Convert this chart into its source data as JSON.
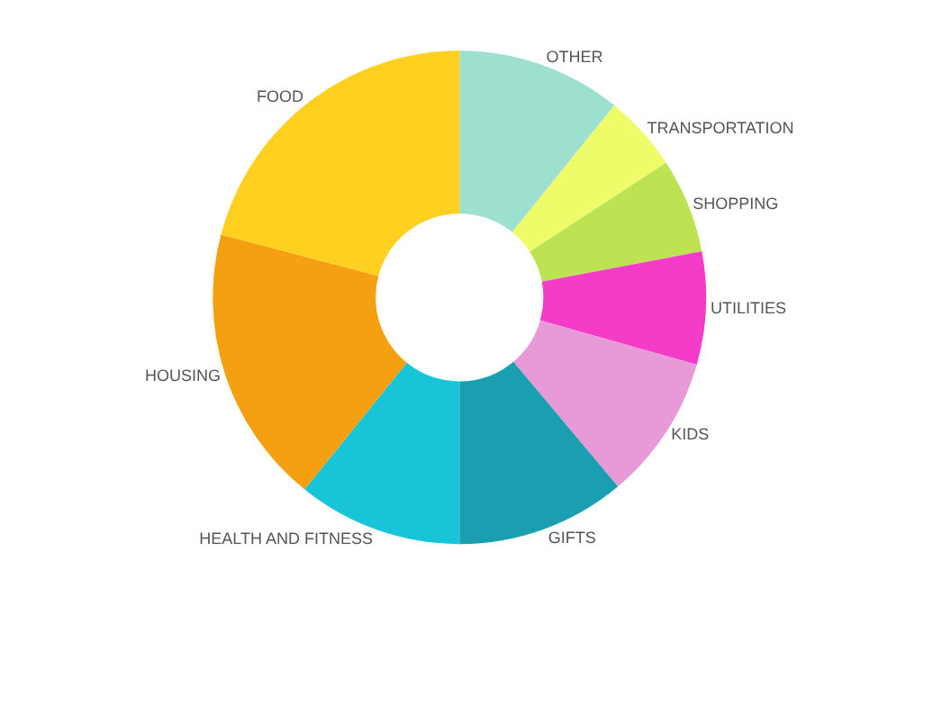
{
  "chart_data": {
    "type": "donut",
    "categories": [
      "OTHER",
      "TRANSPORTATION",
      "SHOPPING",
      "UTILITIES",
      "KIDS",
      "GIFTS",
      "HEALTH AND FITNESS",
      "HOUSING",
      "FOOD"
    ],
    "values": [
      10.8,
      5,
      6.2,
      7.4,
      9.5,
      11.1,
      10.8,
      18.3,
      20.9
    ],
    "colors": [
      "#9ee0d0",
      "#eefc6a",
      "#bde352",
      "#f53cc8",
      "#e89ad8",
      "#1a9fb0",
      "#18c4d8",
      "#f5a010",
      "#ffd020"
    ],
    "legend": false
  }
}
